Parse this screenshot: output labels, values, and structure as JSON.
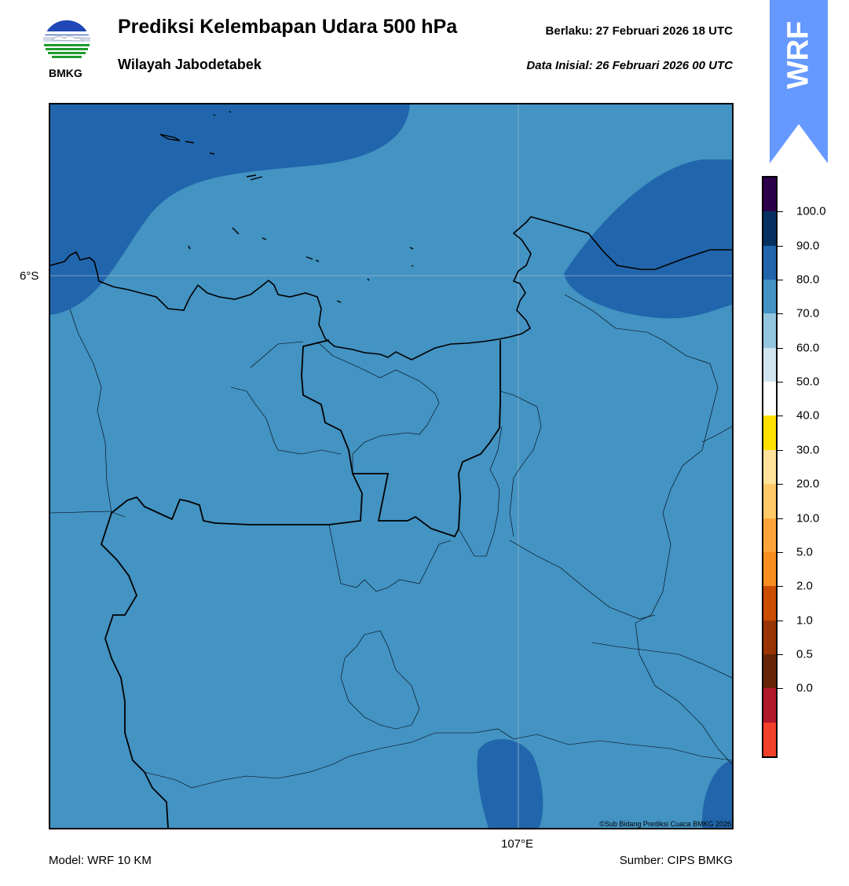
{
  "header": {
    "title": "Prediksi Kelembapan Udara 500 hPa",
    "subtitle": "Wilayah Jabodetabek",
    "valid_time": "Berlaku:  27 Februari 2026 18 UTC",
    "init_time": "Data Inisial:  26 Februari 2026 00 UTC"
  },
  "logo": {
    "text": "BMKG",
    "icon": "bmkg-logo-icon"
  },
  "badge": {
    "text": "WRF",
    "color": "#6699ff"
  },
  "map": {
    "lat_label": "6°S",
    "lon_label": "107°E",
    "copyright": "©Sub Bidang Prediksi Cuaca BMKG 2026",
    "fill_colors": {
      "70-80": "#4393c3",
      "80-90": "#2166ac"
    }
  },
  "footer": {
    "model": "Model: WRF 10 KM",
    "source": "Sumber: CIPS BMKG"
  },
  "colorbar": {
    "ticks": [
      "100.0",
      "90.0",
      "80.0",
      "70.0",
      "60.0",
      "50.0",
      "40.0",
      "30.0",
      "20.0",
      "10.0",
      "5.0",
      "2.0",
      "1.0",
      "0.5",
      "0.0"
    ],
    "colors": [
      "#2d004b",
      "#053061",
      "#2166ac",
      "#4393c3",
      "#92c5de",
      "#d1e5f0",
      "#ffffff",
      "#ffe100",
      "#ffe39a",
      "#fec966",
      "#fca43a",
      "#fa8d20",
      "#cc4c02",
      "#993404",
      "#662506",
      "#b2182b",
      "#f2402b"
    ]
  }
}
